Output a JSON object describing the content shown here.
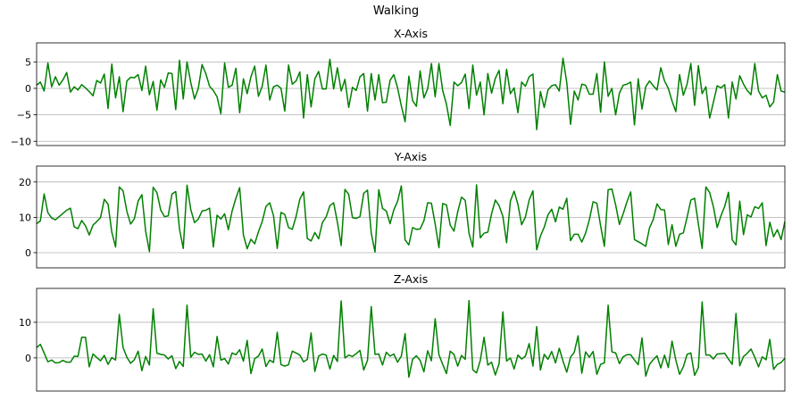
{
  "figure": {
    "title": "Walking"
  },
  "colors": {
    "line": "#008000",
    "grid": "#b0b0b0",
    "axes": "#000000"
  },
  "chart_data": [
    {
      "type": "line",
      "title": "X-Axis",
      "ylim": [
        -10.8,
        8.6
      ],
      "yticks": [
        5,
        0,
        -5,
        -10
      ],
      "grid": "horizontal",
      "series": [
        {
          "values": [
            0.6,
            1.2,
            -0.5,
            4.8,
            0.3,
            2.2,
            0.6,
            1.6,
            3.0,
            -0.7,
            0.3,
            -0.3,
            0.7,
            0.1,
            -0.6,
            -1.4,
            1.5,
            1.0,
            2.7,
            -3.8,
            4.6,
            -1.8,
            2.2,
            -4.4,
            1.4,
            2.1,
            2.0,
            2.6,
            -0.4,
            4.2,
            -1.2,
            1.3,
            -4.1,
            1.6,
            0.2,
            2.9,
            2.8,
            -4.0,
            5.3,
            -2.0,
            5.0,
            1.1,
            -2.0,
            0.0,
            4.5,
            2.8,
            0.4,
            -0.4,
            -1.6,
            -4.8,
            4.8,
            0.2,
            0.6,
            3.8,
            -4.6,
            1.8,
            -1.0,
            2.2,
            4.2,
            -1.5,
            0.4,
            4.4,
            -2.2,
            0.3,
            0.6,
            0.0,
            -4.3,
            4.4,
            0.8,
            1.4,
            3.1,
            -5.6,
            2.6,
            -3.5,
            1.8,
            3.2,
            -0.1,
            -0.1,
            5.5,
            -0.1,
            3.9,
            -0.5,
            1.7,
            -3.6,
            0.2,
            -0.4,
            2.2,
            2.8,
            -4.3,
            2.8,
            -2.2,
            2.6,
            -2.7,
            -2.6,
            1.5,
            2.6,
            0.1,
            -3.3,
            -6.3,
            2.3,
            -2.3,
            -3.4,
            3.3,
            -1.8,
            -0.1,
            4.7,
            -1.6,
            4.7,
            -0.4,
            -3.0,
            -7.0,
            1.2,
            0.5,
            1.1,
            2.7,
            -3.8,
            4.4,
            -1.3,
            1.2,
            -5.0,
            2.8,
            -0.9,
            1.9,
            3.4,
            -2.9,
            3.6,
            -1.0,
            0.1,
            -4.6,
            1.2,
            0.4,
            2.2,
            2.7,
            -7.8,
            -0.6,
            -3.6,
            -0.3,
            0.5,
            0.7,
            -0.5,
            5.7,
            1.1,
            -6.8,
            -0.5,
            -2.2,
            0.8,
            0.6,
            -1.1,
            -1.1,
            2.8,
            -4.5,
            5.0,
            -1.5,
            0.0,
            -5.0,
            -0.9,
            0.6,
            0.8,
            1.2,
            -6.9,
            1.8,
            -3.9,
            0.3,
            1.4,
            0.5,
            -0.3,
            3.9,
            1.4,
            0.0,
            -2.4,
            -4.4,
            2.6,
            -1.3,
            0.8,
            4.7,
            -3.2,
            4.3,
            -1.0,
            0.3,
            -5.6,
            -2.6,
            0.5,
            0.1,
            0.7,
            -5.6,
            1.2,
            -2.0,
            2.4,
            0.8,
            -0.4,
            -1.2,
            4.7,
            -0.5,
            -1.8,
            -1.3,
            -3.5,
            -2.6,
            2.6,
            -0.5,
            -0.7
          ]
        }
      ]
    },
    {
      "type": "line",
      "title": "Y-Axis",
      "ylim": [
        -4.3,
        24.5
      ],
      "yticks": [
        20,
        10,
        0
      ],
      "grid": "horizontal",
      "series": [
        {
          "values": [
            8.2,
            9.0,
            16.6,
            11.3,
            9.8,
            9.3,
            10.2,
            11.1,
            12.0,
            12.6,
            7.3,
            6.8,
            9.1,
            7.6,
            5.0,
            7.8,
            8.8,
            9.9,
            15.1,
            13.7,
            5.8,
            1.6,
            18.6,
            17.5,
            11.7,
            8.1,
            9.6,
            14.6,
            16.4,
            6.1,
            0.3,
            18.5,
            17.0,
            12.1,
            10.2,
            10.4,
            16.6,
            17.3,
            6.7,
            1.2,
            19.1,
            12.2,
            8.5,
            9.5,
            11.8,
            12.0,
            12.6,
            1.6,
            10.6,
            9.5,
            11.0,
            6.5,
            11.8,
            15.4,
            18.4,
            5.0,
            1.1,
            3.8,
            2.5,
            5.9,
            8.8,
            13.1,
            14.1,
            10.5,
            1.2,
            11.4,
            10.8,
            7.1,
            6.6,
            10.2,
            15.1,
            17.2,
            4.0,
            3.3,
            5.7,
            3.9,
            8.5,
            10.1,
            13.3,
            14.1,
            8.6,
            2.0,
            17.9,
            16.5,
            9.9,
            9.7,
            10.2,
            16.8,
            17.7,
            5.5,
            0.2,
            17.8,
            12.5,
            11.8,
            8.2,
            12.1,
            14.5,
            18.9,
            3.6,
            2.2,
            7.1,
            6.6,
            6.7,
            9.0,
            14.1,
            14.0,
            8.1,
            1.4,
            13.9,
            13.5,
            7.8,
            6.1,
            11.6,
            15.7,
            14.8,
            5.5,
            1.6,
            19.2,
            4.2,
            5.5,
            5.8,
            11.0,
            14.9,
            13.3,
            10.3,
            2.8,
            14.6,
            17.4,
            13.7,
            7.9,
            10.1,
            14.9,
            17.5,
            0.8,
            4.7,
            7.2,
            10.7,
            12.3,
            8.7,
            12.9,
            12.3,
            15.4,
            3.4,
            5.2,
            5.2,
            3.0,
            5.5,
            9.3,
            14.4,
            14.0,
            7.6,
            1.8,
            17.8,
            18.0,
            13.5,
            8.0,
            11.0,
            14.4,
            17.2,
            3.7,
            3.1,
            2.5,
            1.8,
            7.0,
            9.4,
            13.8,
            12.2,
            12.1,
            2.3,
            7.9,
            1.8,
            5.2,
            5.6,
            10.0,
            14.9,
            15.4,
            8.1,
            1.2,
            18.6,
            17.0,
            13.0,
            7.1,
            10.4,
            13.1,
            17.1,
            3.6,
            2.2,
            14.6,
            5.1,
            10.7,
            10.1,
            13.0,
            12.5,
            14.1,
            2.0,
            8.6,
            4.5,
            6.5,
            3.7,
            8.8
          ]
        }
      ]
    },
    {
      "type": "line",
      "title": "Z-Axis",
      "ylim": [
        -9.3,
        19.5
      ],
      "yticks": [
        10,
        0
      ],
      "grid": "horizontal",
      "series": [
        {
          "values": [
            2.9,
            3.8,
            1.4,
            -1.1,
            -0.6,
            -1.4,
            -1.3,
            -0.7,
            -1.2,
            -1.2,
            0.5,
            0.4,
            5.8,
            5.8,
            -2.5,
            1.1,
            0.1,
            -0.8,
            0.7,
            -1.8,
            0.1,
            -0.6,
            12.2,
            2.9,
            0.2,
            -1.5,
            -0.5,
            1.9,
            -3.6,
            0.4,
            -2.0,
            13.8,
            1.3,
            1.0,
            0.8,
            -0.3,
            0.6,
            -3.0,
            -1.0,
            -2.4,
            14.8,
            0.2,
            1.6,
            1.0,
            1.1,
            -0.9,
            0.9,
            -2.5,
            6.0,
            -0.6,
            -0.2,
            -1.7,
            1.4,
            0.9,
            2.3,
            -0.9,
            4.9,
            -4.4,
            -0.2,
            0.5,
            2.5,
            -2.4,
            -0.6,
            -1.3,
            7.2,
            -1.9,
            -2.3,
            -1.9,
            1.9,
            1.4,
            0.8,
            -1.1,
            -0.4,
            7.0,
            -3.8,
            0.5,
            1.1,
            0.8,
            -3.1,
            0.7,
            -1.0,
            16.0,
            0.0,
            0.8,
            0.4,
            1.2,
            2.1,
            -3.4,
            -0.7,
            14.4,
            1.0,
            1.1,
            -2.0,
            1.6,
            0.5,
            1.1,
            -1.2,
            0.5,
            6.8,
            -5.4,
            -0.4,
            0.6,
            -0.7,
            -3.9,
            2.0,
            -0.8,
            11.0,
            0.9,
            -1.8,
            -4.4,
            1.9,
            1.0,
            -2.3,
            0.7,
            -0.4,
            16.1,
            -3.3,
            -4.2,
            -0.7,
            5.8,
            -2.0,
            -1.2,
            -4.8,
            -1.6,
            12.9,
            -0.9,
            0.0,
            -3.1,
            0.8,
            -0.3,
            0.5,
            4.0,
            -2.3,
            8.8,
            -3.4,
            1.0,
            -0.4,
            1.8,
            -1.4,
            2.7,
            -0.9,
            -4.0,
            0.2,
            1.6,
            6.2,
            -4.3,
            1.7,
            0.2,
            1.8,
            -4.6,
            -1.8,
            -1.4,
            14.8,
            1.7,
            1.4,
            -1.6,
            0.3,
            0.9,
            0.9,
            -0.6,
            -1.9,
            5.6,
            -5.1,
            -1.8,
            -0.5,
            0.6,
            -2.8,
            0.8,
            -2.7,
            4.7,
            -0.6,
            -4.6,
            -2.5,
            1.0,
            1.4,
            -4.9,
            -2.7,
            15.7,
            0.8,
            0.8,
            -0.3,
            1.1,
            1.2,
            1.3,
            -0.3,
            -1.8,
            12.5,
            -2.2,
            0.4,
            1.3,
            2.5,
            0.2,
            -2.5,
            0.3,
            -0.5,
            5.2,
            -3.2,
            -1.8,
            -1.3,
            -0.1
          ]
        }
      ]
    }
  ]
}
